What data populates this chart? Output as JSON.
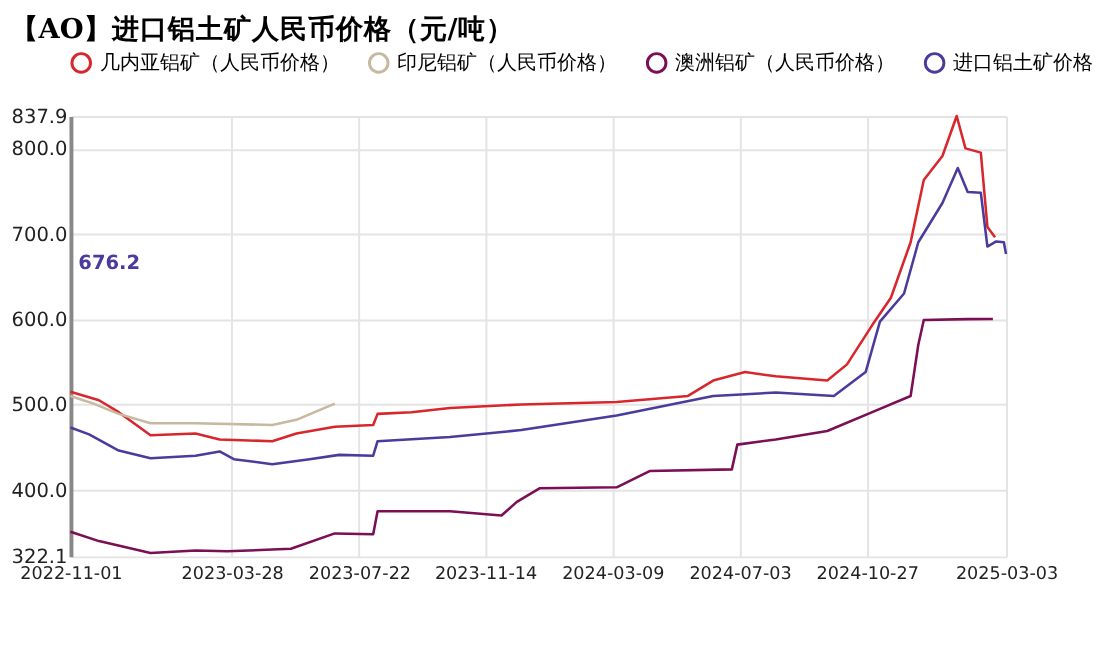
{
  "chart_data": {
    "type": "line",
    "title": "【AO】进口铝土矿人民币价格（元/吨）",
    "xlim": [
      "2022-11-01",
      "2025-03-03"
    ],
    "xticks": [
      "2022-11-01",
      "2023-03-28",
      "2023-07-22",
      "2023-11-14",
      "2024-03-09",
      "2024-07-03",
      "2024-10-27",
      "2025-03-03"
    ],
    "ylim": [
      322.1,
      837.9
    ],
    "yticks": [
      322.1,
      {
        "value": 400,
        "label": "400.0"
      },
      {
        "value": 500,
        "label": "500.0"
      },
      {
        "value": 600,
        "label": "600.0"
      },
      {
        "value": 700,
        "label": "700.0"
      },
      {
        "value": 800,
        "label": "800.0"
      },
      837.9
    ],
    "grid": true,
    "legend": "top",
    "annotations": [
      "676.2"
    ],
    "series": [
      {
        "name": "几内亚铝矿（人民币价格）",
        "color": "#d7272d",
        "x": [
          "2022-11-01",
          "2022-11-27",
          "2022-12-15",
          "2023-01-13",
          "2023-02-23",
          "2023-03-17",
          "2023-05-04",
          "2023-05-26",
          "2023-06-30",
          "2023-08-04",
          "2023-08-08",
          "2023-09-08",
          "2023-10-13",
          "2023-12-17",
          "2024-03-13",
          "2024-05-17",
          "2024-06-09",
          "2024-07-08",
          "2024-08-05",
          "2024-09-21",
          "2024-10-09",
          "2024-11-01",
          "2024-11-18",
          "2024-12-06",
          "2024-12-18",
          "2025-01-04",
          "2025-01-17",
          "2025-01-25",
          "2025-02-08",
          "2025-02-14",
          "2025-02-21"
        ],
        "values": [
          515,
          505,
          491,
          464,
          466,
          459,
          457,
          466,
          474,
          476,
          489,
          491,
          496,
          500,
          503,
          510,
          528,
          538,
          533,
          528,
          547,
          593,
          625,
          690,
          763,
          791,
          837.9,
          800,
          795,
          708,
          696
        ]
      },
      {
        "name": "印尼铝矿（人民币价格）",
        "color": "#c8b8a0",
        "x": [
          "2022-11-01",
          "2022-11-22",
          "2022-12-15",
          "2023-01-13",
          "2023-02-23",
          "2023-05-04",
          "2023-05-26",
          "2023-06-30"
        ],
        "values": [
          510,
          501,
          489,
          478,
          478,
          476,
          482,
          501
        ]
      },
      {
        "name": "澳洲铝矿（人民币价格）",
        "color": "#7b0e55",
        "x": [
          "2022-11-01",
          "2022-11-27",
          "2023-01-13",
          "2023-02-23",
          "2023-03-24",
          "2023-05-21",
          "2023-06-30",
          "2023-08-04",
          "2023-08-08",
          "2023-10-13",
          "2023-11-29",
          "2023-12-13",
          "2024-01-03",
          "2024-03-13",
          "2024-04-12",
          "2024-06-26",
          "2024-07-01",
          "2024-08-05",
          "2024-09-21",
          "2024-11-01",
          "2024-12-06",
          "2024-12-13",
          "2024-12-18",
          "2025-01-27",
          "2025-02-19"
        ],
        "values": [
          351,
          340,
          326,
          329,
          328,
          331,
          349,
          348,
          375,
          375,
          370,
          386,
          402,
          403,
          422,
          424,
          453,
          459,
          469,
          491,
          510,
          570,
          599,
          600,
          600.2
        ]
      },
      {
        "name": "进口铝土矿价格",
        "color": "#4a3c9c",
        "x": [
          "2022-11-01",
          "2022-11-18",
          "2022-12-15",
          "2023-01-13",
          "2023-02-23",
          "2023-03-17",
          "2023-03-30",
          "2023-05-04",
          "2023-06-07",
          "2023-07-04",
          "2023-08-04",
          "2023-08-08",
          "2023-10-13",
          "2023-12-17",
          "2024-03-13",
          "2024-06-09",
          "2024-08-05",
          "2024-09-27",
          "2024-10-26",
          "2024-11-08",
          "2024-11-30",
          "2024-12-13",
          "2025-01-04",
          "2025-01-18",
          "2025-01-27",
          "2025-02-08",
          "2025-02-14",
          "2025-02-22",
          "2025-03-01",
          "2025-03-03"
        ],
        "values": [
          473,
          465,
          446,
          437,
          440,
          445,
          436,
          430,
          436,
          441,
          440,
          457,
          462,
          470,
          487,
          510,
          514,
          510,
          538,
          597,
          630,
          690,
          736,
          777,
          749,
          748,
          685,
          691,
          690,
          676.2
        ]
      }
    ]
  }
}
